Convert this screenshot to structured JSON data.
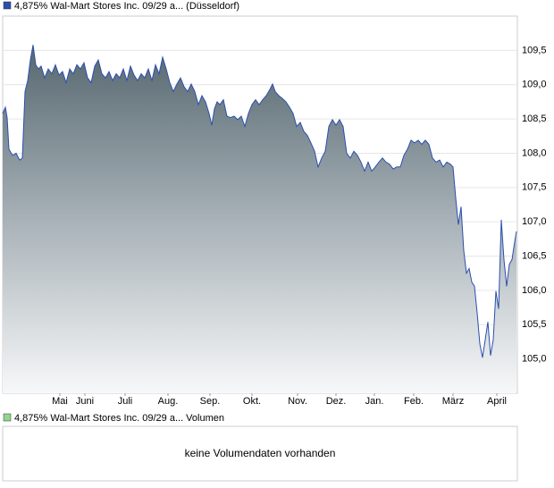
{
  "chart_data": {
    "type": "line",
    "series": [
      {
        "name": "4,875% Wal-Mart Stores Inc. 09/29 a... (Düsseldorf)",
        "color": "#2b4fae",
        "x": [
          0,
          3,
          5,
          7,
          11,
          15,
          19,
          22,
          25,
          28,
          31,
          34,
          37,
          40,
          43,
          47,
          51,
          55,
          59,
          63,
          67,
          71,
          75,
          79,
          83,
          87,
          91,
          95,
          99,
          103,
          107,
          111,
          115,
          119,
          123,
          127,
          131,
          135,
          139,
          143,
          147,
          151,
          155,
          159,
          163,
          167,
          171,
          175,
          179,
          183,
          187,
          191,
          195,
          199,
          203,
          207,
          211,
          215,
          219,
          223,
          227,
          231,
          234,
          237,
          240,
          243,
          247,
          251,
          255,
          259,
          263,
          267,
          271,
          275,
          279,
          283,
          287,
          291,
          295,
          299,
          302,
          305,
          309,
          313,
          317,
          321,
          325,
          329,
          333,
          337,
          341,
          345,
          349,
          353,
          357,
          361,
          365,
          369,
          373,
          377,
          381,
          385,
          389,
          393,
          397,
          401,
          405,
          409,
          413,
          417,
          421,
          425,
          429,
          433,
          437,
          441,
          445,
          449,
          453,
          457,
          461,
          465,
          469,
          473,
          477,
          481,
          485,
          489,
          493,
          497,
          501,
          504,
          507,
          510,
          513,
          516,
          519,
          522,
          525,
          528,
          531,
          534,
          537,
          540,
          543,
          546,
          549,
          552,
          555,
          558,
          561,
          564,
          567,
          570,
          573,
          575
        ],
        "values": [
          108.58,
          108.67,
          108.52,
          108.06,
          107.97,
          108.0,
          107.9,
          107.93,
          108.9,
          109.06,
          109.36,
          109.58,
          109.29,
          109.23,
          109.27,
          109.1,
          109.23,
          109.16,
          109.29,
          109.14,
          109.19,
          109.03,
          109.23,
          109.16,
          109.29,
          109.23,
          109.32,
          109.1,
          109.03,
          109.27,
          109.36,
          109.16,
          109.1,
          109.19,
          109.06,
          109.16,
          109.1,
          109.23,
          109.06,
          109.27,
          109.14,
          109.06,
          109.16,
          109.1,
          109.23,
          109.06,
          109.29,
          109.16,
          109.4,
          109.23,
          109.03,
          108.9,
          109.01,
          109.1,
          108.97,
          108.9,
          109.01,
          108.9,
          108.71,
          108.84,
          108.75,
          108.58,
          108.41,
          108.65,
          108.75,
          108.71,
          108.78,
          108.54,
          108.52,
          108.54,
          108.49,
          108.54,
          108.39,
          108.58,
          108.71,
          108.78,
          108.71,
          108.78,
          108.84,
          108.93,
          109.01,
          108.9,
          108.84,
          108.8,
          108.75,
          108.67,
          108.58,
          108.39,
          108.45,
          108.32,
          108.26,
          108.15,
          108.03,
          107.8,
          107.93,
          108.03,
          108.39,
          108.49,
          108.41,
          108.49,
          108.39,
          108.0,
          107.93,
          108.03,
          107.97,
          107.87,
          107.74,
          107.87,
          107.74,
          107.8,
          107.87,
          107.93,
          107.87,
          107.84,
          107.77,
          107.8,
          107.8,
          107.97,
          108.06,
          108.19,
          108.15,
          108.19,
          108.13,
          108.19,
          108.13,
          107.93,
          107.87,
          107.9,
          107.8,
          107.87,
          107.84,
          107.8,
          107.35,
          106.96,
          107.22,
          106.58,
          106.25,
          106.32,
          106.12,
          106.06,
          105.67,
          105.22,
          105.02,
          105.28,
          105.54,
          105.05,
          105.28,
          105.99,
          105.73,
          107.03,
          106.45,
          106.06,
          106.38,
          106.45,
          106.71,
          106.86
        ]
      }
    ],
    "xlim": [
      0,
      576
    ],
    "xticks": [
      {
        "value": 64,
        "label": "Mai"
      },
      {
        "value": 92,
        "label": "Juni"
      },
      {
        "value": 137,
        "label": "Juli"
      },
      {
        "value": 185,
        "label": "Aug."
      },
      {
        "value": 232,
        "label": "Sep."
      },
      {
        "value": 279,
        "label": "Okt."
      },
      {
        "value": 330,
        "label": "Nov."
      },
      {
        "value": 373,
        "label": "Dez."
      },
      {
        "value": 416,
        "label": "Jan."
      },
      {
        "value": 460,
        "label": "Feb."
      },
      {
        "value": 504,
        "label": "März"
      },
      {
        "value": 553,
        "label": "April"
      }
    ],
    "ylim": [
      104.5,
      110.0
    ],
    "yticks": [
      {
        "value": 105.0,
        "label": "105,0"
      },
      {
        "value": 105.5,
        "label": "105,5"
      },
      {
        "value": 106.0,
        "label": "106,0"
      },
      {
        "value": 106.5,
        "label": "106,5"
      },
      {
        "value": 107.0,
        "label": "107,0"
      },
      {
        "value": 107.5,
        "label": "107,5"
      },
      {
        "value": 108.0,
        "label": "108,0"
      },
      {
        "value": 108.5,
        "label": "108,5"
      },
      {
        "value": 109.0,
        "label": "109,0"
      },
      {
        "value": 109.5,
        "label": "109,5"
      }
    ],
    "grid": true
  },
  "volume_panel": {
    "legend": "4,875% Wal-Mart Stores Inc. 09/29 a... Volumen",
    "color": "#8fd68f",
    "message": "keine Volumendaten vorhanden"
  }
}
